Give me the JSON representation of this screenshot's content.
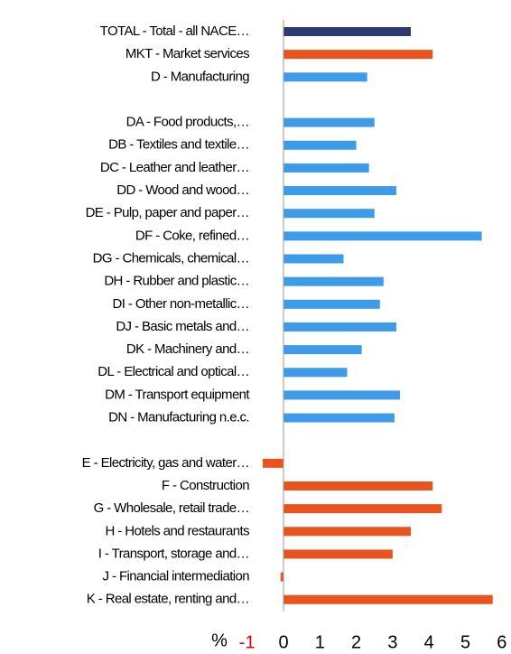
{
  "chart_data": {
    "type": "hbar",
    "categories": [
      "TOTAL - Total - all NACE…",
      "MKT - Market services",
      "D - Manufacturing",
      null,
      "DA - Food products,…",
      "DB - Textiles and textile…",
      "DC - Leather and leather…",
      "DD - Wood and wood…",
      "DE - Pulp, paper and paper…",
      "DF - Coke, refined…",
      "DG - Chemicals, chemical…",
      "DH - Rubber and plastic…",
      "DI - Other non-metallic…",
      "DJ - Basic metals and…",
      "DK - Machinery and…",
      "DL - Electrical and optical…",
      "DM - Transport equipment",
      "DN - Manufacturing n.e.c.",
      null,
      "E - Electricity, gas and water…",
      "F - Construction",
      "G - Wholesale, retail trade…",
      "H - Hotels and restaurants",
      "I - Transport, storage and…",
      "J - Financial intermediation",
      "K - Real estate, renting and…"
    ],
    "values": [
      3.5,
      4.1,
      2.3,
      null,
      2.5,
      2.0,
      2.35,
      3.1,
      2.5,
      5.45,
      1.65,
      2.75,
      2.65,
      3.1,
      2.15,
      1.75,
      3.2,
      3.05,
      null,
      -0.57,
      4.1,
      4.35,
      3.5,
      3.0,
      -0.08,
      5.75
    ],
    "colors": [
      "#2e3a6e",
      "#e8531e",
      "#3d9be9",
      null,
      "#3d9be9",
      "#3d9be9",
      "#3d9be9",
      "#3d9be9",
      "#3d9be9",
      "#3d9be9",
      "#3d9be9",
      "#3d9be9",
      "#3d9be9",
      "#3d9be9",
      "#3d9be9",
      "#3d9be9",
      "#3d9be9",
      "#3d9be9",
      null,
      "#e8531e",
      "#e8531e",
      "#e8531e",
      "#e8531e",
      "#e8531e",
      "#e8531e",
      "#e8531e"
    ],
    "x_label": "%",
    "xlim": [
      -1,
      6
    ],
    "xticks": [
      -1,
      0,
      1,
      2,
      3,
      4,
      5,
      6
    ],
    "negative_tick_color": "#e00000"
  }
}
